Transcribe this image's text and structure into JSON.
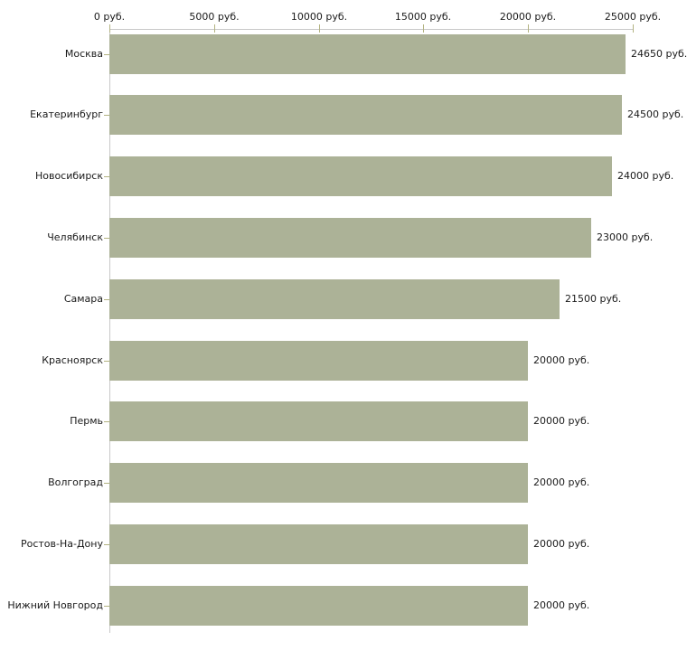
{
  "chart_data": {
    "type": "bar",
    "orientation": "horizontal",
    "title": "",
    "unit": "руб.",
    "categories": [
      "Москва",
      "Екатеринбург",
      "Новосибирск",
      "Челябинск",
      "Самара",
      "Красноярск",
      "Пермь",
      "Волгоград",
      "Ростов-На-Дону",
      "Нижний Новгород"
    ],
    "values": [
      24650,
      24500,
      24000,
      23000,
      21500,
      20000,
      20000,
      20000,
      20000,
      20000
    ],
    "value_labels": [
      "24650 руб.",
      "24500 руб.",
      "24000 руб.",
      "23000 руб.",
      "21500 руб.",
      "20000 руб.",
      "20000 руб.",
      "20000 руб.",
      "20000 руб.",
      "20000 руб."
    ],
    "x_axis": {
      "position": "top",
      "range": [
        0,
        25000
      ],
      "ticks": [
        0,
        5000,
        10000,
        15000,
        20000,
        25000
      ],
      "tick_labels": [
        "0 руб.",
        "5000 руб.",
        "10000 руб.",
        "15000 руб.",
        "20000 руб.",
        "25000 руб."
      ]
    },
    "grid": false,
    "legend": false,
    "colors": {
      "bar": "#acb297",
      "axis_line": "#c8c8c8",
      "tick": "#b3b381",
      "text": "#1a1a1a",
      "background": "#ffffff"
    }
  }
}
